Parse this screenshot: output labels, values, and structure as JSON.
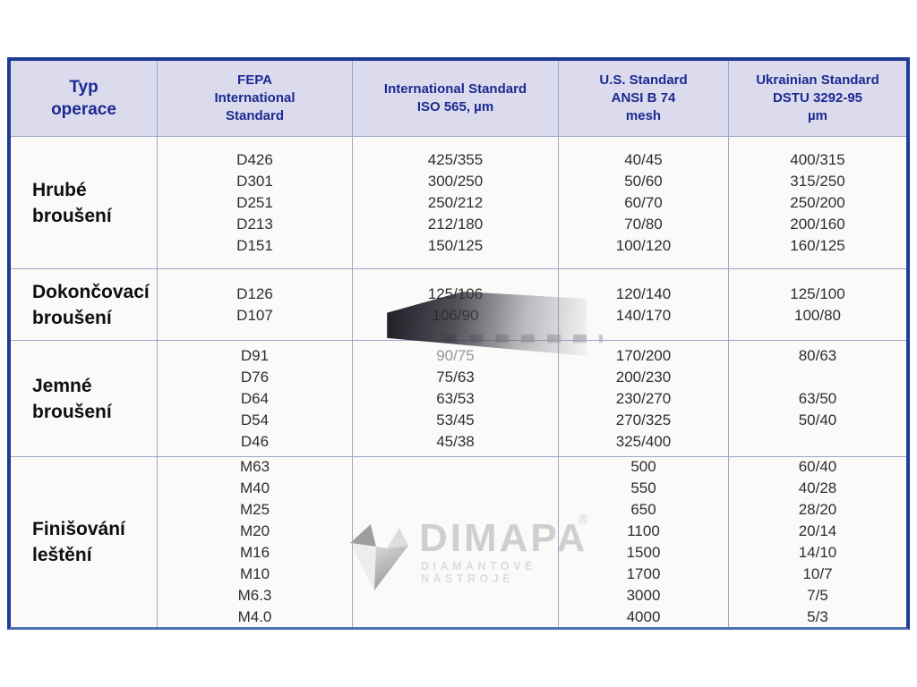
{
  "colors": {
    "table_border": "#1e3c96",
    "table_border_bottom": "#4a72b2",
    "header_bg": "#dcdbee",
    "header_text": "#1b2a91",
    "grid_line": "#9aa8c6",
    "body_text": "#2e2e2e",
    "faded_text": "#979797",
    "watermark_gray": "#cfcfcf"
  },
  "table": {
    "headers": [
      "Typ\noperace",
      "FEPA\nInternational\nStandard",
      "International Standard\nISO 565, µm",
      "U.S. Standard\nANSI B 74\nmesh",
      "Ukrainian Standard\nDSTU 3292-95\nµm"
    ],
    "rows": [
      {
        "label": "Hrubé\nbroušení",
        "fepa": [
          "D426",
          "D301",
          "D251",
          "D213",
          "D151"
        ],
        "iso": [
          "425/355",
          "300/250",
          "250/212",
          "212/180",
          "150/125"
        ],
        "us": [
          "40/45",
          "50/60",
          "60/70",
          "70/80",
          "100/120"
        ],
        "ukr": [
          "400/315",
          "315/250",
          "250/200",
          "200/160",
          "160/125"
        ]
      },
      {
        "label": "Dokončovací\nbroušení",
        "fepa": [
          "D126",
          "D107"
        ],
        "iso": [
          "125/106",
          "106/90"
        ],
        "us": [
          "120/140",
          "140/170"
        ],
        "ukr": [
          "125/100",
          "100/80"
        ]
      },
      {
        "label": "Jemné\nbroušení",
        "fepa": [
          "D91",
          "D76",
          "D64",
          "D54",
          "D46"
        ],
        "iso": [
          "90/75",
          "75/63",
          "63/53",
          "53/45",
          "45/38"
        ],
        "us": [
          "170/200",
          "200/230",
          "230/270",
          "270/325",
          "325/400"
        ],
        "ukr": [
          "80/63",
          "",
          "63/50",
          "50/40",
          ""
        ]
      },
      {
        "label": "Finišování\nleštění",
        "fepa": [
          "M63",
          "M40",
          "M25",
          "M20",
          "M16",
          "M10",
          "M6.3",
          "M4.0"
        ],
        "iso": [],
        "us": [
          "500",
          "550",
          "650",
          "1100",
          "1500",
          "1700",
          "3000",
          "4000"
        ],
        "ukr": [
          "60/40",
          "40/28",
          "28/20",
          "20/14",
          "14/10",
          "10/7",
          "7/5",
          "5/3"
        ]
      }
    ]
  },
  "watermark": {
    "brand": "DIMAPA",
    "registered": "®",
    "subtitle": "DIAMANTOVÉ NÁSTROJE"
  }
}
